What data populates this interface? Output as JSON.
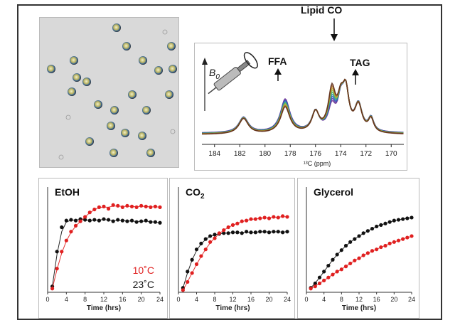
{
  "nmr": {
    "title_lipid_co": "Lipid CO",
    "label_ffa": "FFA",
    "label_tag": "TAG",
    "b0_label": "B",
    "b0_sub": "0",
    "x_ticks": [
      "184",
      "182",
      "180",
      "178",
      "176",
      "174",
      "172",
      "170"
    ],
    "x_axis_label": "¹³C (ppm)"
  },
  "chart_data": [
    {
      "type": "line",
      "title": "EtOH",
      "xlabel": "Time (hrs)",
      "x_ticks": [
        "0",
        "4",
        "8",
        "12",
        "16",
        "20",
        "24"
      ],
      "legend": [
        {
          "label": "10˚C",
          "color": "#e02020"
        },
        {
          "label": "23˚C",
          "color": "#111111"
        }
      ],
      "series": [
        {
          "name": "23˚C",
          "color": "#111111",
          "x": [
            1,
            2,
            3,
            4,
            5,
            6,
            7,
            8,
            9,
            10,
            11,
            12,
            13,
            14,
            15,
            16,
            17,
            18,
            19,
            20,
            21,
            22,
            23,
            24
          ],
          "values": [
            0.08,
            0.55,
            0.88,
            0.97,
            0.98,
            0.97,
            0.99,
            0.98,
            0.97,
            0.98,
            0.97,
            0.99,
            0.98,
            0.96,
            0.98,
            0.97,
            0.96,
            0.97,
            0.95,
            0.96,
            0.97,
            0.95,
            0.95,
            0.94
          ]
        },
        {
          "name": "10˚C",
          "color": "#e02020",
          "x": [
            1,
            2,
            3,
            4,
            5,
            6,
            7,
            8,
            9,
            10,
            11,
            12,
            13,
            14,
            15,
            16,
            17,
            18,
            19,
            20,
            21,
            22,
            23,
            24
          ],
          "values": [
            0.05,
            0.32,
            0.55,
            0.7,
            0.82,
            0.9,
            0.96,
            1.02,
            1.08,
            1.12,
            1.15,
            1.16,
            1.13,
            1.18,
            1.17,
            1.15,
            1.17,
            1.16,
            1.15,
            1.17,
            1.16,
            1.15,
            1.16,
            1.15
          ]
        }
      ]
    },
    {
      "type": "line",
      "title": "CO",
      "title_sub": "2",
      "xlabel": "Time (hrs)",
      "x_ticks": [
        "0",
        "4",
        "8",
        "12",
        "16",
        "20",
        "24"
      ],
      "series": [
        {
          "name": "23˚C",
          "color": "#111111",
          "x": [
            1,
            2,
            3,
            4,
            5,
            6,
            7,
            8,
            9,
            10,
            11,
            12,
            13,
            14,
            15,
            16,
            17,
            18,
            19,
            20,
            21,
            22,
            23,
            24
          ],
          "values": [
            0.06,
            0.28,
            0.44,
            0.58,
            0.66,
            0.72,
            0.76,
            0.78,
            0.79,
            0.8,
            0.8,
            0.81,
            0.81,
            0.8,
            0.82,
            0.81,
            0.81,
            0.82,
            0.82,
            0.81,
            0.82,
            0.82,
            0.81,
            0.82
          ]
        },
        {
          "name": "10˚C",
          "color": "#e02020",
          "x": [
            1,
            2,
            3,
            4,
            5,
            6,
            7,
            8,
            9,
            10,
            11,
            12,
            13,
            14,
            15,
            16,
            17,
            18,
            19,
            20,
            21,
            22,
            23,
            24
          ],
          "values": [
            0.03,
            0.14,
            0.26,
            0.38,
            0.49,
            0.58,
            0.68,
            0.73,
            0.8,
            0.84,
            0.88,
            0.91,
            0.93,
            0.96,
            0.97,
            0.99,
            0.99,
            1.0,
            1.01,
            1.0,
            1.02,
            1.01,
            1.03,
            1.02
          ]
        }
      ]
    },
    {
      "type": "line",
      "title": "Glycerol",
      "xlabel": "Time (hrs)",
      "x_ticks": [
        "0",
        "4",
        "8",
        "12",
        "16",
        "20",
        "24"
      ],
      "series": [
        {
          "name": "23˚C",
          "color": "#111111",
          "x": [
            1,
            2,
            3,
            4,
            5,
            6,
            7,
            8,
            9,
            10,
            11,
            12,
            13,
            14,
            15,
            16,
            17,
            18,
            19,
            20,
            21,
            22,
            23,
            24
          ],
          "values": [
            0.06,
            0.12,
            0.2,
            0.28,
            0.36,
            0.44,
            0.51,
            0.57,
            0.63,
            0.68,
            0.72,
            0.76,
            0.8,
            0.83,
            0.86,
            0.89,
            0.91,
            0.93,
            0.95,
            0.97,
            0.98,
            0.99,
            1.0,
            1.01
          ]
        },
        {
          "name": "10˚C",
          "color": "#e02020",
          "x": [
            1,
            2,
            3,
            4,
            5,
            6,
            7,
            8,
            9,
            10,
            11,
            12,
            13,
            14,
            15,
            16,
            17,
            18,
            19,
            20,
            21,
            22,
            23,
            24
          ],
          "values": [
            0.05,
            0.08,
            0.12,
            0.16,
            0.2,
            0.24,
            0.28,
            0.31,
            0.35,
            0.39,
            0.43,
            0.46,
            0.5,
            0.53,
            0.56,
            0.58,
            0.61,
            0.63,
            0.66,
            0.68,
            0.7,
            0.72,
            0.74,
            0.76
          ]
        }
      ]
    }
  ]
}
